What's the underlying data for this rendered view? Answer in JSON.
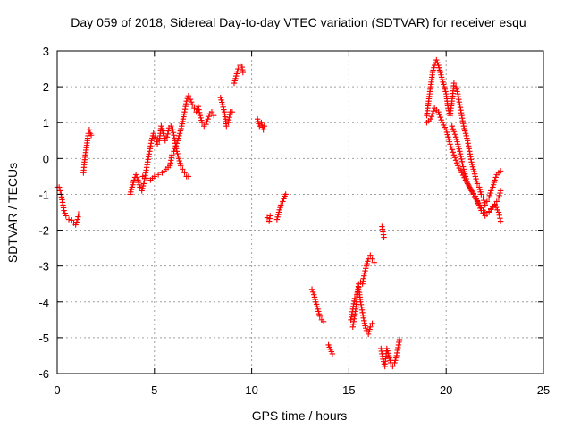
{
  "chart_data": {
    "type": "scatter",
    "title": "Day 059 of 2018, Sidereal Day-to-day VTEC variation (SDTVAR) for receiver esqu",
    "xlabel": "GPS time / hours",
    "ylabel": "SDTVAR / TECUs",
    "xlim": [
      0,
      25
    ],
    "ylim": [
      -6,
      3
    ],
    "xticks": [
      0,
      5,
      10,
      15,
      20,
      25
    ],
    "yticks": [
      -6,
      -5,
      -4,
      -3,
      -2,
      -1,
      0,
      1,
      2,
      3
    ],
    "xtick_labels": [
      "0",
      "5",
      "10",
      "15",
      "20",
      "25"
    ],
    "ytick_labels": [
      "-6",
      "-5",
      "-4",
      "-3",
      "-2",
      "-1",
      "0",
      "1",
      "2",
      "3"
    ],
    "grid": true,
    "marker": "+",
    "color": "#ff0000",
    "series": [
      {
        "name": "SDTVAR",
        "segments": [
          [
            [
              0.0,
              -0.8
            ],
            [
              0.1,
              -0.8
            ],
            [
              0.15,
              -0.9
            ],
            [
              0.2,
              -1.0
            ],
            [
              0.25,
              -1.15
            ],
            [
              0.3,
              -1.3
            ],
            [
              0.35,
              -1.45
            ],
            [
              0.45,
              -1.6
            ],
            [
              0.6,
              -1.7
            ],
            [
              0.75,
              -1.72
            ],
            [
              0.85,
              -1.8
            ],
            [
              0.95,
              -1.85
            ],
            [
              1.05,
              -1.7
            ],
            [
              1.1,
              -1.55
            ]
          ],
          [
            [
              1.35,
              -0.4
            ],
            [
              1.4,
              -0.1
            ],
            [
              1.45,
              0.1
            ],
            [
              1.5,
              0.3
            ],
            [
              1.55,
              0.5
            ],
            [
              1.6,
              0.7
            ],
            [
              1.65,
              0.8
            ],
            [
              1.7,
              0.7
            ],
            [
              1.75,
              0.65
            ]
          ],
          [
            [
              3.75,
              -1.0
            ],
            [
              3.85,
              -0.8
            ],
            [
              3.95,
              -0.6
            ],
            [
              4.05,
              -0.45
            ],
            [
              4.15,
              -0.6
            ],
            [
              4.25,
              -0.8
            ],
            [
              4.35,
              -0.9
            ],
            [
              4.45,
              -0.7
            ],
            [
              4.55,
              -0.4
            ],
            [
              4.65,
              -0.1
            ],
            [
              4.75,
              0.2
            ],
            [
              4.85,
              0.5
            ],
            [
              4.95,
              0.7
            ],
            [
              5.05,
              0.6
            ],
            [
              5.15,
              0.4
            ],
            [
              5.25,
              0.5
            ],
            [
              5.35,
              0.9
            ],
            [
              5.45,
              0.7
            ],
            [
              5.55,
              0.5
            ],
            [
              5.65,
              0.6
            ],
            [
              5.75,
              0.85
            ],
            [
              5.85,
              0.9
            ],
            [
              5.95,
              0.8
            ],
            [
              6.05,
              0.5
            ],
            [
              6.15,
              0.2
            ],
            [
              6.25,
              0.0
            ],
            [
              6.35,
              -0.2
            ],
            [
              6.45,
              -0.3
            ],
            [
              6.55,
              -0.4
            ],
            [
              6.65,
              -0.5
            ],
            [
              6.75,
              -0.5
            ]
          ],
          [
            [
              4.4,
              -0.5
            ],
            [
              4.6,
              -0.55
            ],
            [
              4.8,
              -0.6
            ],
            [
              5.0,
              -0.5
            ],
            [
              5.2,
              -0.45
            ],
            [
              5.4,
              -0.4
            ],
            [
              5.6,
              -0.3
            ],
            [
              5.8,
              -0.2
            ],
            [
              5.9,
              0.1
            ]
          ],
          [
            [
              6.0,
              0.2
            ],
            [
              6.2,
              0.5
            ],
            [
              6.4,
              0.9
            ],
            [
              6.55,
              1.3
            ],
            [
              6.65,
              1.6
            ],
            [
              6.75,
              1.75
            ],
            [
              6.85,
              1.65
            ],
            [
              6.95,
              1.5
            ],
            [
              7.05,
              1.4
            ],
            [
              7.15,
              1.3
            ],
            [
              7.25,
              1.45
            ],
            [
              7.35,
              1.2
            ],
            [
              7.45,
              1.0
            ],
            [
              7.55,
              0.9
            ],
            [
              7.65,
              0.95
            ],
            [
              7.75,
              1.1
            ],
            [
              7.85,
              1.25
            ],
            [
              7.95,
              1.3
            ],
            [
              8.05,
              1.2
            ]
          ],
          [
            [
              8.4,
              1.7
            ],
            [
              8.5,
              1.5
            ],
            [
              8.6,
              1.3
            ],
            [
              8.7,
              0.9
            ],
            [
              8.8,
              1.0
            ],
            [
              8.9,
              1.3
            ],
            [
              9.0,
              1.3
            ]
          ],
          [
            [
              9.1,
              2.1
            ],
            [
              9.2,
              2.3
            ],
            [
              9.3,
              2.5
            ],
            [
              9.4,
              2.6
            ],
            [
              9.5,
              2.55
            ],
            [
              9.55,
              2.4
            ]
          ],
          [
            [
              10.3,
              1.1
            ],
            [
              10.4,
              0.9
            ],
            [
              10.5,
              1.0
            ],
            [
              10.6,
              0.8
            ],
            [
              10.65,
              0.9
            ]
          ],
          [
            [
              10.8,
              -1.65
            ],
            [
              10.9,
              -1.75
            ],
            [
              10.95,
              -1.6
            ]
          ],
          [
            [
              11.3,
              -1.7
            ],
            [
              11.4,
              -1.5
            ],
            [
              11.5,
              -1.3
            ],
            [
              11.6,
              -1.2
            ],
            [
              11.7,
              -1.05
            ],
            [
              11.75,
              -1.0
            ]
          ],
          [
            [
              13.1,
              -3.65
            ],
            [
              13.2,
              -3.8
            ],
            [
              13.3,
              -4.0
            ],
            [
              13.4,
              -4.2
            ],
            [
              13.5,
              -4.4
            ],
            [
              13.6,
              -4.5
            ],
            [
              13.7,
              -4.55
            ]
          ],
          [
            [
              13.95,
              -5.2
            ],
            [
              14.15,
              -5.45
            ]
          ],
          [
            [
              15.1,
              -4.5
            ],
            [
              15.2,
              -4.2
            ],
            [
              15.3,
              -3.9
            ],
            [
              15.4,
              -3.8
            ],
            [
              15.5,
              -3.6
            ],
            [
              15.6,
              -4.0
            ],
            [
              15.7,
              -4.3
            ],
            [
              15.8,
              -4.6
            ],
            [
              15.9,
              -4.8
            ],
            [
              16.0,
              -4.9
            ],
            [
              16.1,
              -4.7
            ],
            [
              16.2,
              -4.6
            ]
          ],
          [
            [
              15.2,
              -4.7
            ],
            [
              15.3,
              -4.4
            ],
            [
              15.4,
              -4.0
            ],
            [
              15.5,
              -3.5
            ],
            [
              15.6,
              -3.45
            ],
            [
              15.7,
              -3.5
            ],
            [
              15.8,
              -3.2
            ],
            [
              15.9,
              -3.0
            ],
            [
              16.0,
              -2.8
            ],
            [
              16.1,
              -2.7
            ],
            [
              16.2,
              -2.8
            ],
            [
              16.3,
              -2.9
            ]
          ],
          [
            [
              16.7,
              -1.9
            ],
            [
              16.75,
              -2.05
            ],
            [
              16.8,
              -2.2
            ]
          ],
          [
            [
              16.65,
              -5.3
            ],
            [
              16.75,
              -5.6
            ],
            [
              16.85,
              -5.8
            ],
            [
              16.95,
              -5.3
            ],
            [
              17.05,
              -5.5
            ],
            [
              17.15,
              -5.7
            ],
            [
              17.25,
              -5.8
            ],
            [
              17.35,
              -5.7
            ],
            [
              17.45,
              -5.5
            ],
            [
              17.55,
              -5.2
            ],
            [
              17.6,
              -5.05
            ]
          ],
          [
            [
              19.0,
              1.2
            ],
            [
              19.1,
              1.6
            ],
            [
              19.2,
              2.0
            ],
            [
              19.3,
              2.4
            ],
            [
              19.4,
              2.6
            ],
            [
              19.5,
              2.75
            ],
            [
              19.6,
              2.6
            ],
            [
              19.7,
              2.4
            ],
            [
              19.8,
              2.2
            ],
            [
              19.9,
              2.0
            ],
            [
              20.0,
              1.8
            ],
            [
              20.1,
              1.4
            ],
            [
              20.2,
              1.2
            ],
            [
              20.3,
              1.6
            ],
            [
              20.4,
              2.1
            ],
            [
              20.5,
              2.0
            ],
            [
              20.6,
              1.8
            ],
            [
              20.7,
              1.5
            ],
            [
              20.8,
              1.2
            ],
            [
              20.9,
              0.9
            ],
            [
              21.0,
              0.7
            ],
            [
              21.1,
              0.5
            ],
            [
              21.2,
              0.2
            ],
            [
              21.3,
              -0.1
            ],
            [
              21.4,
              -0.3
            ],
            [
              21.5,
              -0.5
            ],
            [
              21.6,
              -0.7
            ],
            [
              21.7,
              -0.8
            ],
            [
              21.8,
              -1.0
            ],
            [
              21.9,
              -1.1
            ],
            [
              22.0,
              -1.3
            ],
            [
              22.1,
              -1.2
            ],
            [
              22.2,
              -1.1
            ],
            [
              22.3,
              -0.9
            ],
            [
              22.4,
              -0.8
            ],
            [
              22.5,
              -0.6
            ],
            [
              22.6,
              -0.45
            ],
            [
              22.7,
              -0.4
            ],
            [
              22.8,
              -0.35
            ]
          ],
          [
            [
              19.0,
              1.0
            ],
            [
              19.2,
              1.1
            ],
            [
              19.4,
              1.4
            ],
            [
              19.6,
              1.3
            ],
            [
              19.8,
              1.0
            ],
            [
              20.0,
              0.8
            ],
            [
              20.2,
              0.4
            ],
            [
              20.4,
              0.1
            ],
            [
              20.6,
              -0.2
            ],
            [
              20.8,
              -0.4
            ],
            [
              21.0,
              -0.6
            ],
            [
              21.2,
              -0.8
            ],
            [
              21.4,
              -1.0
            ],
            [
              21.6,
              -1.2
            ],
            [
              21.8,
              -1.45
            ],
            [
              22.0,
              -1.6
            ],
            [
              22.2,
              -1.5
            ],
            [
              22.4,
              -1.35
            ],
            [
              22.6,
              -1.2
            ],
            [
              22.7,
              -1.1
            ],
            [
              22.8,
              -0.9
            ]
          ],
          [
            [
              20.3,
              0.9
            ],
            [
              20.5,
              0.6
            ],
            [
              20.7,
              0.2
            ],
            [
              20.9,
              -0.3
            ],
            [
              21.1,
              -0.7
            ],
            [
              21.3,
              -0.9
            ],
            [
              21.5,
              -1.05
            ],
            [
              21.7,
              -1.3
            ],
            [
              21.9,
              -1.45
            ],
            [
              22.1,
              -1.55
            ],
            [
              22.3,
              -1.4
            ],
            [
              22.5,
              -1.3
            ],
            [
              22.7,
              -1.5
            ],
            [
              22.8,
              -1.75
            ]
          ]
        ]
      }
    ]
  }
}
